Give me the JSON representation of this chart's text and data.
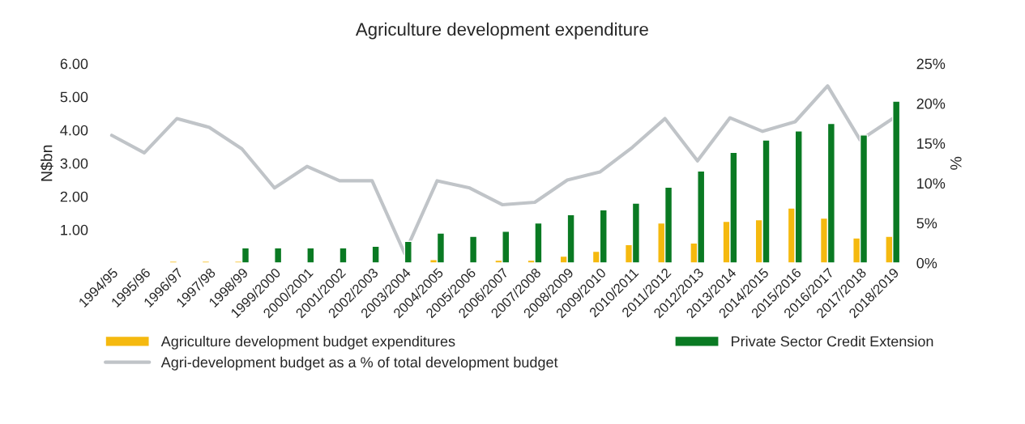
{
  "chart_data": {
    "type": "bar",
    "title": "Agriculture development expenditure",
    "ylabel": "N$bn",
    "y2label": "%",
    "categories": [
      "1994/95",
      "1995/96",
      "1996/97",
      "1997/98",
      "1998/99",
      "1999/2000",
      "2000/2001",
      "2001/2002",
      "2002/2003",
      "2003/2004",
      "2004/2005",
      "2005/2006",
      "2006/2007",
      "2007/2008",
      "2008/2009",
      "2009/2010",
      "2010/2011",
      "2011/2012",
      "2012/2013",
      "2013/2014",
      "2014/2015",
      "2015/2016",
      "2016/2017",
      "2017/2018",
      "2018/2019"
    ],
    "series": [
      {
        "name": "Agriculture development budget expenditures",
        "color": "#f5b90f",
        "values": [
          null,
          null,
          0.05,
          0.05,
          0.05,
          null,
          null,
          null,
          null,
          null,
          0.1,
          null,
          0.08,
          0.08,
          0.2,
          0.35,
          0.55,
          1.2,
          0.6,
          1.25,
          1.3,
          1.65,
          1.35,
          0.75,
          0.8
        ]
      },
      {
        "name": "Private Sector Credit Extension",
        "color": "#0a7a23",
        "values": [
          null,
          null,
          null,
          null,
          0.45,
          0.45,
          0.45,
          0.45,
          0.5,
          0.65,
          0.9,
          0.8,
          0.95,
          1.2,
          1.45,
          1.6,
          1.8,
          2.28,
          2.77,
          3.33,
          3.7,
          3.97,
          4.2,
          3.85,
          4.87
        ]
      },
      {
        "name": "Agri-development budget as a % of total development budget",
        "type": "line",
        "axis": "y2",
        "color": "#c0c4c8",
        "values": [
          16,
          13.8,
          18.1,
          17,
          14.3,
          9.4,
          12.1,
          10.3,
          10.3,
          1.2,
          10.3,
          9.4,
          7.3,
          7.6,
          10.4,
          11.4,
          14.5,
          18.1,
          12.8,
          18.2,
          16.5,
          17.7,
          22.2,
          15.4,
          18.1
        ]
      }
    ],
    "ylim": [
      0,
      6
    ],
    "yticks": [
      {
        "value": 1,
        "label": "1.00"
      },
      {
        "value": 2,
        "label": "2.00"
      },
      {
        "value": 3,
        "label": "3.00"
      },
      {
        "value": 4,
        "label": "4.00"
      },
      {
        "value": 5,
        "label": "5.00"
      },
      {
        "value": 6,
        "label": "6.00"
      }
    ],
    "y2lim": [
      0,
      25
    ],
    "y2ticks": [
      {
        "value": 0,
        "label": "0%"
      },
      {
        "value": 5,
        "label": "5%"
      },
      {
        "value": 10,
        "label": "10%"
      },
      {
        "value": 15,
        "label": "15%"
      },
      {
        "value": 20,
        "label": "20%"
      },
      {
        "value": 25,
        "label": "25%"
      }
    ],
    "grid": false,
    "legend": "bottom"
  }
}
